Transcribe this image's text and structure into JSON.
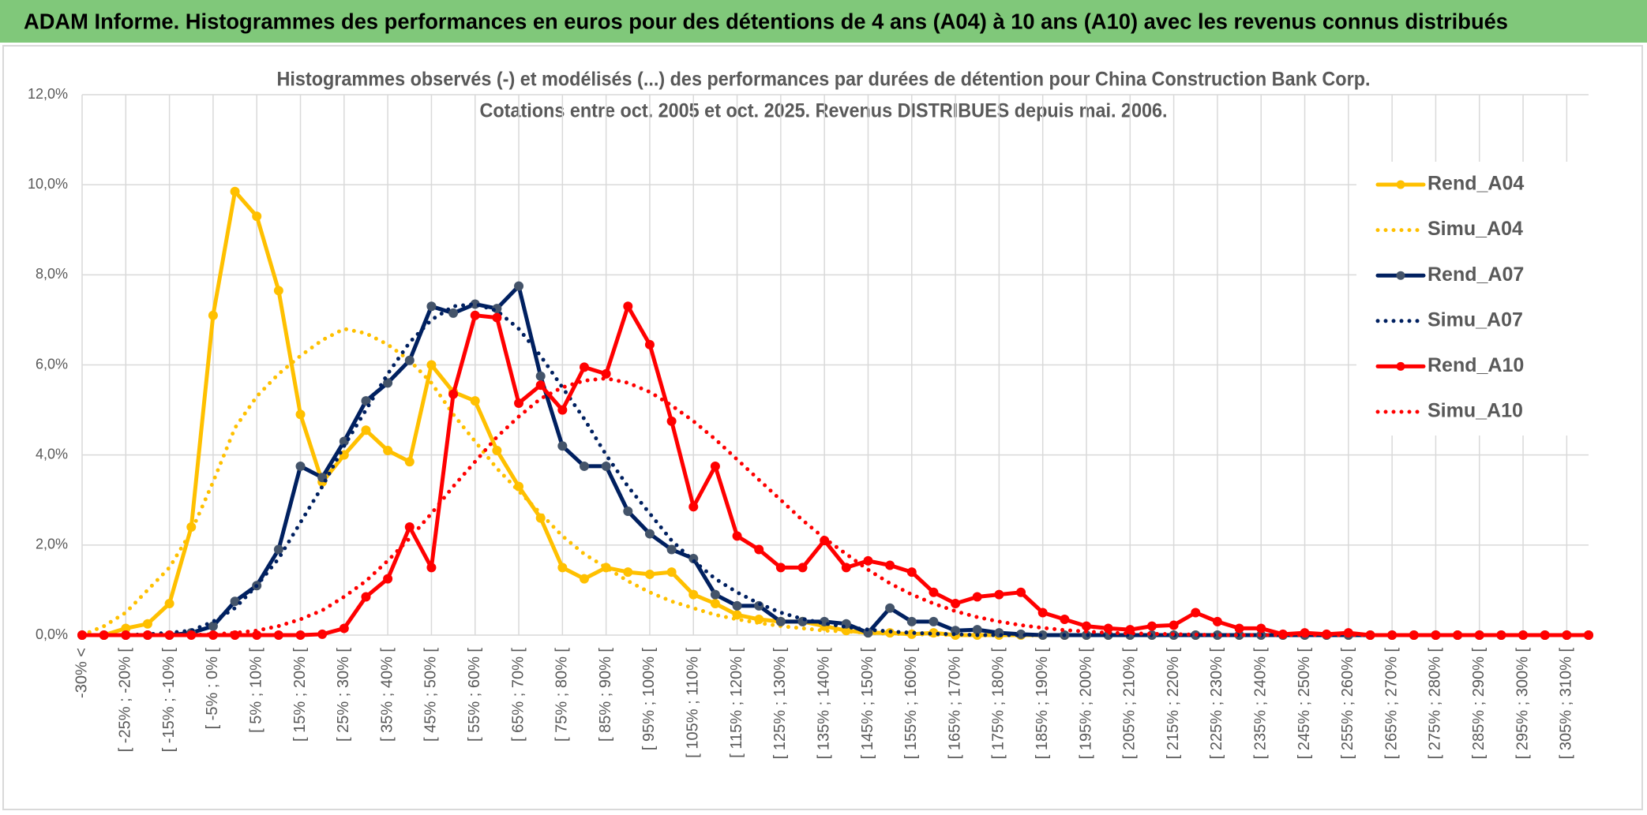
{
  "chart_data": {
    "type": "line",
    "header": "ADAM Informe. Histogrammes des performances en euros pour des détentions de 4 ans (A04) à 10 ans (A10) avec les revenus connus distribués",
    "title": "Histogrammes observés (-) et modélisés (...) des performances par durées de détention pour China Construction Bank Corp.",
    "subtitle": "Cotations entre oct. 2005 et oct. 2025. Revenus DISTRIBUES depuis mai. 2006.",
    "categories": [
      "-30% <",
      null,
      "[ -25% ; -20% [",
      null,
      "[ -15% ; -10% [",
      null,
      "[ -5% ; 0% [",
      null,
      "[ 5% ; 10% [",
      null,
      "[ 15% ; 20% [",
      null,
      "[ 25% ; 30% [",
      null,
      "[ 35% ; 40% [",
      null,
      "[ 45% ; 50% [",
      null,
      "[ 55% ; 60% [",
      null,
      "[ 65% ; 70% [",
      null,
      "[ 75% ; 80% [",
      null,
      "[ 85% ; 90% [",
      null,
      "[ 95% ; 100% [",
      null,
      "[ 105% ; 110% [",
      null,
      "[ 115% ; 120% [",
      null,
      "[ 125% ; 130% [",
      null,
      "[ 135% ; 140% [",
      null,
      "[ 145% ; 150% [",
      null,
      "[ 155% ; 160% [",
      null,
      "[ 165% ; 170% [",
      null,
      "[ 175% ; 180% [",
      null,
      "[ 185% ; 190% [",
      null,
      "[ 195% ; 200% [",
      null,
      "[ 205% ; 210% [",
      null,
      "[ 215% ; 220% [",
      null,
      "[ 225% ; 230% [",
      null,
      "[ 235% ; 240% [",
      null,
      "[ 245% ; 250% [",
      null,
      "[ 255% ; 260% [",
      null,
      "[ 265% ; 270% [",
      null,
      "[ 275% ; 280% [",
      null,
      "[ 285% ; 290% [",
      null,
      "[ 295% ; 300% [",
      null,
      "[ 305% ; 310% [",
      null
    ],
    "ylim": [
      0,
      12
    ],
    "yticks": [
      {
        "value": 0,
        "label": "0,0%"
      },
      {
        "value": 2,
        "label": "2,0%"
      },
      {
        "value": 4,
        "label": "4,0%"
      },
      {
        "value": 6,
        "label": "6,0%"
      },
      {
        "value": 8,
        "label": "8,0%"
      },
      {
        "value": 10,
        "label": "10,0%"
      },
      {
        "value": 12,
        "label": "12,0%"
      }
    ],
    "grid": true,
    "legend": "right",
    "series": [
      {
        "name": "Rend_A04",
        "color": "#ffc000",
        "style": "solid",
        "marker_color": "#ffc000",
        "values": [
          0,
          0,
          0.15,
          0.25,
          0.7,
          2.4,
          7.1,
          9.85,
          9.3,
          7.65,
          4.9,
          3.4,
          4.0,
          4.55,
          4.1,
          3.85,
          6.0,
          5.4,
          5.2,
          4.1,
          3.3,
          2.6,
          1.5,
          1.25,
          1.5,
          1.4,
          1.35,
          1.4,
          0.9,
          0.7,
          0.45,
          0.35,
          0.3,
          0.3,
          0.2,
          0.1,
          0.05,
          0.05,
          0.02,
          0.05,
          0,
          0,
          0,
          0,
          0,
          0,
          0,
          0,
          0,
          0,
          0,
          0,
          0,
          0,
          0,
          0,
          0,
          0,
          0,
          0,
          0,
          0,
          0,
          0,
          0,
          0,
          0,
          0,
          0,
          0
        ]
      },
      {
        "name": "Simu_A04",
        "color": "#ffc000",
        "style": "dotted",
        "values": [
          0,
          0.2,
          0.5,
          1.0,
          1.5,
          2.3,
          3.4,
          4.6,
          5.3,
          5.8,
          6.2,
          6.55,
          6.8,
          6.7,
          6.45,
          6.1,
          5.6,
          4.9,
          4.3,
          3.7,
          3.2,
          2.7,
          2.2,
          1.8,
          1.5,
          1.2,
          0.95,
          0.75,
          0.6,
          0.45,
          0.35,
          0.27,
          0.2,
          0.15,
          0.1,
          0.08,
          0.05,
          0.03,
          0.02,
          0.01,
          0,
          0,
          0,
          0,
          0,
          0,
          0,
          0,
          0,
          0,
          0,
          0,
          0,
          0,
          0,
          0,
          0,
          0,
          0,
          0,
          0,
          0,
          0,
          0,
          0,
          0,
          0,
          0,
          0,
          0
        ]
      },
      {
        "name": "Rend_A07",
        "color": "#002060",
        "style": "solid",
        "marker_color": "#44546a",
        "values": [
          0,
          0,
          0,
          0,
          0,
          0.05,
          0.2,
          0.75,
          1.1,
          1.9,
          3.75,
          3.5,
          4.3,
          5.2,
          5.6,
          6.1,
          7.3,
          7.15,
          7.35,
          7.25,
          7.75,
          5.75,
          4.2,
          3.75,
          3.75,
          2.75,
          2.25,
          1.9,
          1.7,
          0.9,
          0.65,
          0.65,
          0.3,
          0.3,
          0.3,
          0.25,
          0.05,
          0.6,
          0.3,
          0.3,
          0.1,
          0.12,
          0.05,
          0.02,
          0,
          0,
          0,
          0,
          0,
          0,
          0,
          0,
          0,
          0,
          0,
          0,
          0,
          0,
          0,
          0,
          0,
          0,
          0,
          0,
          0,
          0,
          0,
          0,
          0,
          0
        ]
      },
      {
        "name": "Simu_A07",
        "color": "#002060",
        "style": "dotted",
        "values": [
          0,
          0,
          0,
          0.02,
          0.05,
          0.1,
          0.3,
          0.6,
          1.1,
          1.7,
          2.5,
          3.3,
          4.2,
          5.0,
          5.8,
          6.5,
          7.0,
          7.3,
          7.35,
          7.2,
          6.8,
          6.2,
          5.5,
          4.8,
          4.0,
          3.3,
          2.7,
          2.1,
          1.65,
          1.25,
          0.95,
          0.7,
          0.5,
          0.36,
          0.26,
          0.18,
          0.12,
          0.08,
          0.05,
          0.03,
          0.02,
          0,
          0,
          0,
          0,
          0,
          0,
          0,
          0,
          0,
          0,
          0,
          0,
          0,
          0,
          0,
          0,
          0,
          0,
          0,
          0,
          0,
          0,
          0,
          0,
          0,
          0,
          0,
          0,
          0
        ]
      },
      {
        "name": "Rend_A10",
        "color": "#ff0000",
        "style": "solid",
        "marker_color": "#ff0000",
        "values": [
          0,
          0,
          0,
          0,
          0,
          0,
          0,
          0,
          0,
          0,
          0,
          0.02,
          0.15,
          0.85,
          1.25,
          2.4,
          1.5,
          5.35,
          7.1,
          7.05,
          5.15,
          5.55,
          5.0,
          5.95,
          5.8,
          7.3,
          6.45,
          4.75,
          2.85,
          3.75,
          2.2,
          1.9,
          1.5,
          1.5,
          2.1,
          1.5,
          1.65,
          1.55,
          1.4,
          0.95,
          0.7,
          0.85,
          0.9,
          0.95,
          0.5,
          0.35,
          0.2,
          0.15,
          0.12,
          0.2,
          0.22,
          0.5,
          0.3,
          0.15,
          0.15,
          0.02,
          0.05,
          0.02,
          0.05,
          0,
          0,
          0,
          0,
          0,
          0,
          0,
          0,
          0,
          0,
          0
        ]
      },
      {
        "name": "Simu_A10",
        "color": "#ff0000",
        "style": "dotted",
        "values": [
          0,
          0,
          0,
          0,
          0,
          0,
          0.02,
          0.05,
          0.1,
          0.2,
          0.35,
          0.55,
          0.85,
          1.2,
          1.65,
          2.15,
          2.7,
          3.3,
          3.85,
          4.4,
          4.85,
          5.25,
          5.5,
          5.65,
          5.7,
          5.6,
          5.4,
          5.1,
          4.75,
          4.35,
          3.9,
          3.45,
          3.0,
          2.55,
          2.15,
          1.8,
          1.45,
          1.15,
          0.9,
          0.7,
          0.53,
          0.4,
          0.3,
          0.22,
          0.16,
          0.11,
          0.08,
          0.05,
          0.04,
          0.03,
          0.02,
          0.01,
          0,
          0,
          0,
          0,
          0,
          0,
          0,
          0,
          0,
          0,
          0,
          0,
          0,
          0,
          0,
          0,
          0,
          0
        ]
      }
    ]
  }
}
